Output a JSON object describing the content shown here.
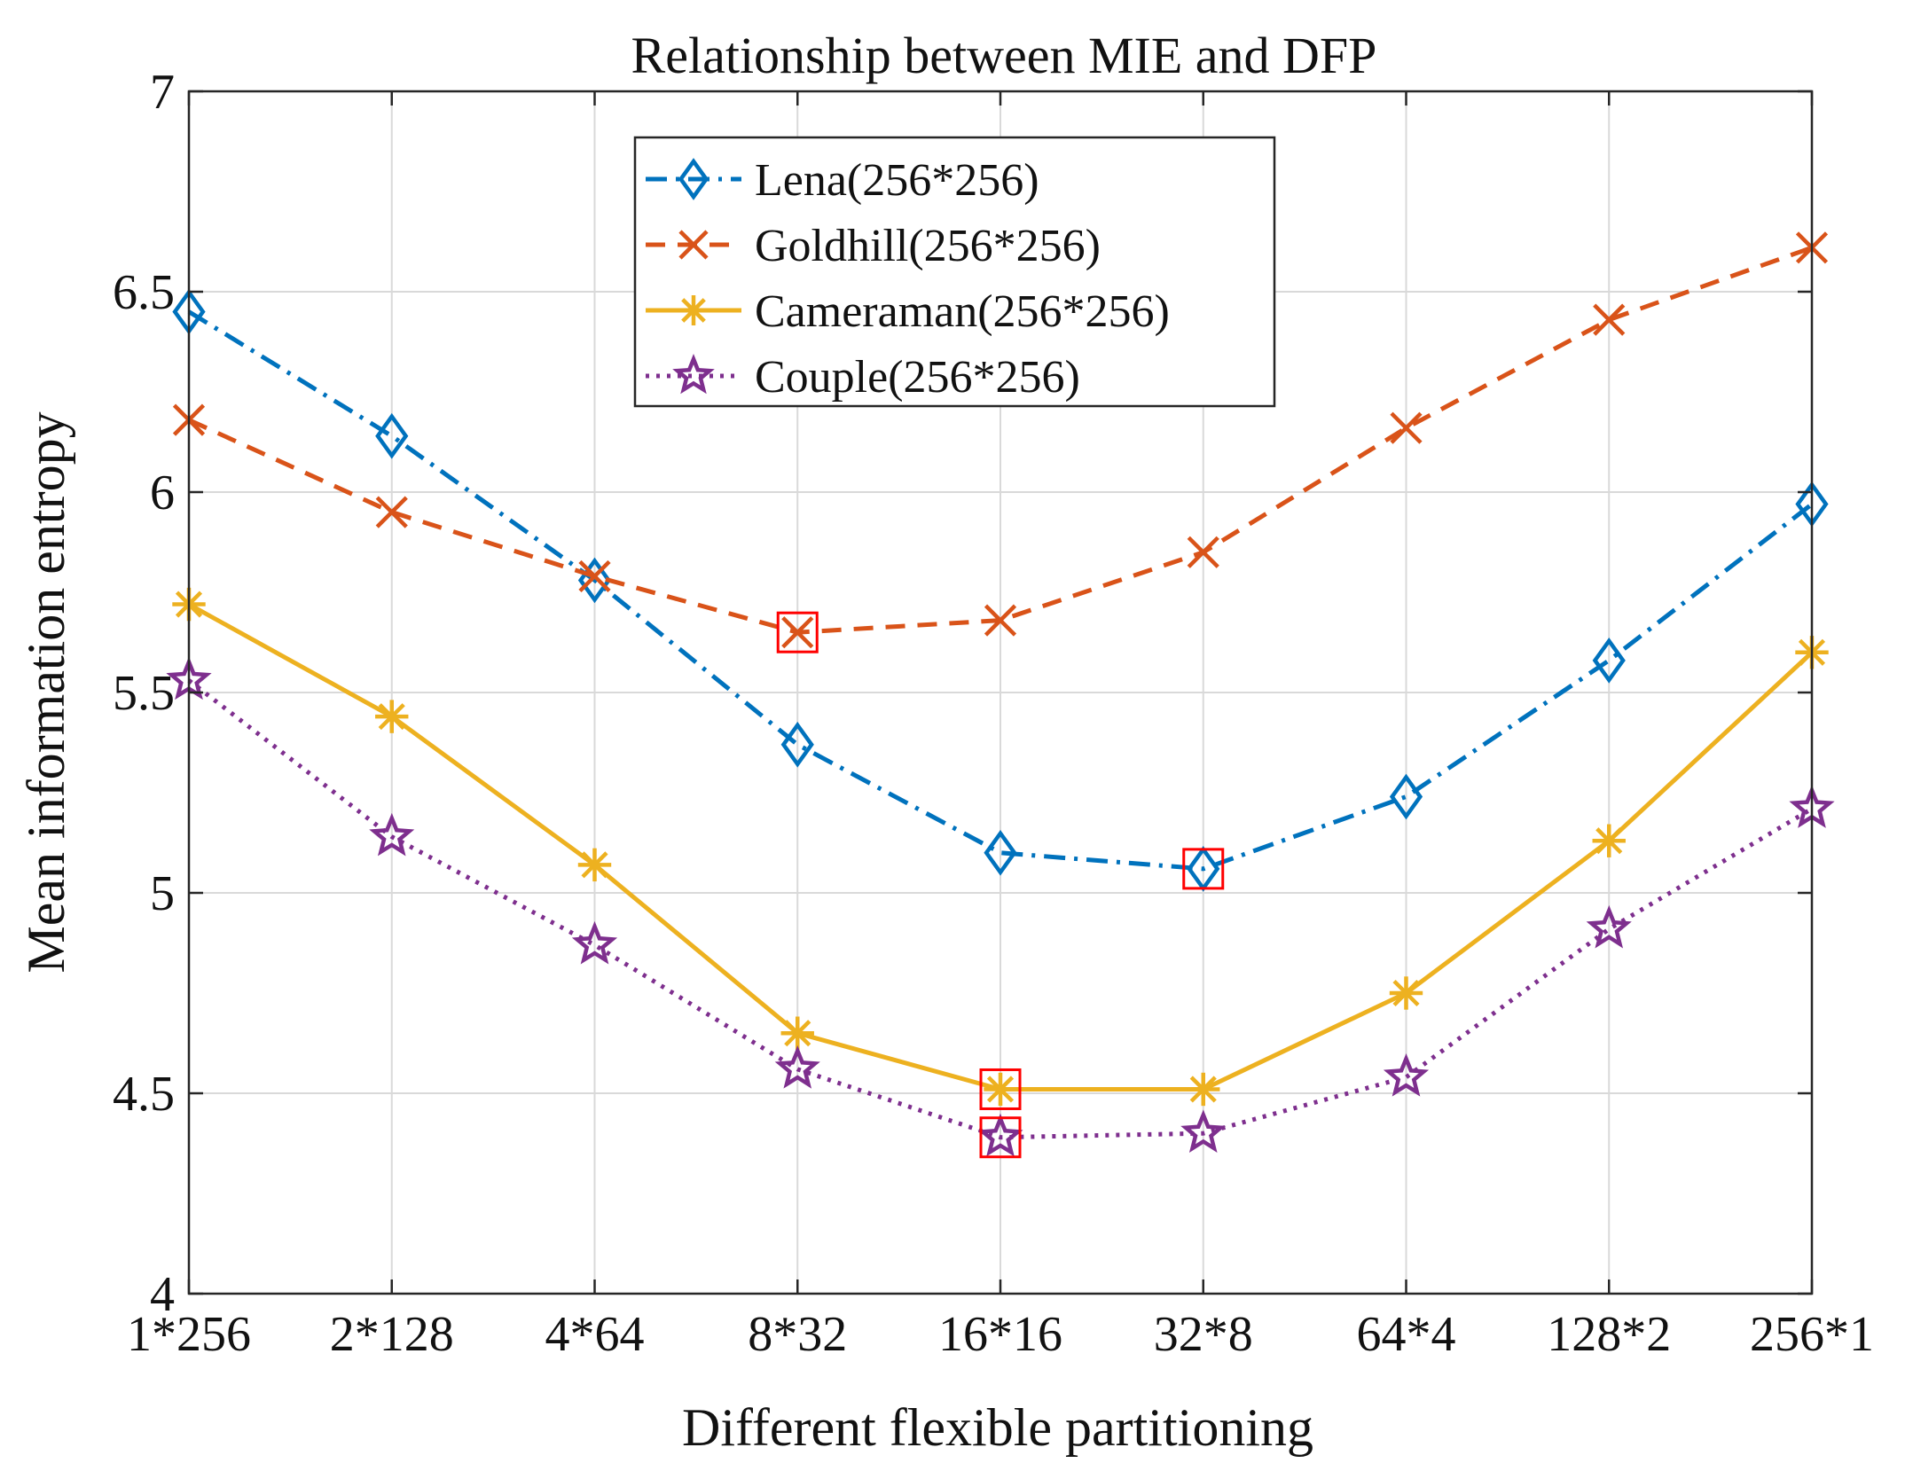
{
  "chart_data": {
    "type": "line",
    "title": "Relationship between MIE and DFP",
    "xlabel": "Different flexible partitioning",
    "ylabel": "Mean information entropy",
    "categories": [
      "1*256",
      "2*128",
      "4*64",
      "8*32",
      "16*16",
      "32*8",
      "64*4",
      "128*2",
      "256*1"
    ],
    "ylim": [
      4,
      7
    ],
    "yticks": [
      "4",
      "4.5",
      "5",
      "5.5",
      "6",
      "6.5",
      "7"
    ],
    "ytick_values": [
      4,
      4.5,
      5,
      5.5,
      6,
      6.5,
      7
    ],
    "grid": true,
    "legend_position": "top-center",
    "series": [
      {
        "name": "Lena(256*256)",
        "values": [
          6.45,
          6.14,
          5.78,
          5.37,
          5.1,
          5.06,
          5.24,
          5.58,
          5.97
        ],
        "color": "#0072BD",
        "line_style": "dash-dot",
        "marker": "diamond",
        "highlight_index": 5
      },
      {
        "name": "Goldhill(256*256)",
        "values": [
          6.18,
          5.95,
          5.79,
          5.65,
          5.68,
          5.85,
          6.16,
          6.43,
          6.61
        ],
        "color": "#D95319",
        "line_style": "dashed",
        "marker": "x",
        "highlight_index": 3
      },
      {
        "name": "Cameraman(256*256)",
        "values": [
          5.72,
          5.44,
          5.07,
          4.65,
          4.51,
          4.51,
          4.75,
          5.13,
          5.6
        ],
        "color": "#EDB120",
        "line_style": "solid",
        "marker": "asterisk",
        "highlight_index": 4
      },
      {
        "name": "Couple(256*256)",
        "values": [
          5.53,
          5.14,
          4.87,
          4.56,
          4.39,
          4.4,
          4.54,
          4.91,
          5.21
        ],
        "color": "#7E2F8E",
        "line_style": "dotted",
        "marker": "star",
        "highlight_index": 4
      }
    ],
    "highlight_color": "#FF0000"
  }
}
